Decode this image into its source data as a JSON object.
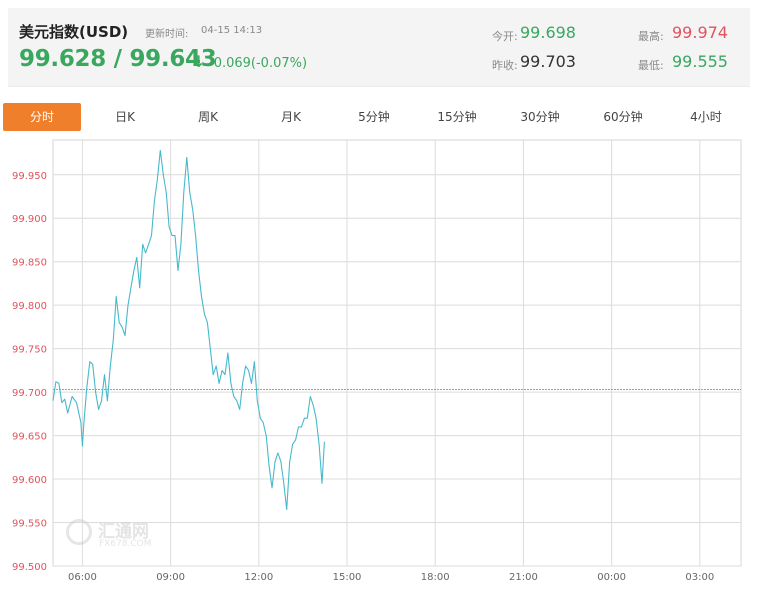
{
  "header": {
    "title": "美元指数(USD)",
    "update_label": "更新时间:",
    "update_time": "04-15 14:13",
    "price": "99.628 / 99.643",
    "change": "-0.069(-0.07%)",
    "open_label": "今开:",
    "open_value": "99.698",
    "prev_close_label": "昨收:",
    "prev_close_value": "99.703",
    "high_label": "最高:",
    "high_value": "99.974",
    "low_label": "最低:",
    "low_value": "99.555"
  },
  "tabs": [
    "分时",
    "日K",
    "周K",
    "月K",
    "5分钟",
    "15分钟",
    "30分钟",
    "60分钟",
    "4小时"
  ],
  "active_tab": "分时",
  "watermark": {
    "text": "汇通网",
    "sub": "FX678.COM"
  },
  "colors": {
    "up": "#e0535e",
    "down": "#3aa75f",
    "line": "#47b9cc",
    "reference": "#e38a55",
    "tab_active": "#f07f2c"
  },
  "chart_data": {
    "type": "line",
    "title": "",
    "xlabel": "",
    "ylabel": "",
    "x_ticks": [
      "06:00",
      "09:00",
      "12:00",
      "15:00",
      "18:00",
      "21:00",
      "00:00",
      "03:00"
    ],
    "y_ticks": [
      "99.500",
      "99.550",
      "99.600",
      "99.650",
      "99.700",
      "99.750",
      "99.800",
      "99.850",
      "99.900",
      "99.950"
    ],
    "ylim": [
      99.5,
      99.99
    ],
    "x_hours_range": [
      5.0,
      28.4
    ],
    "reference_value": 99.703,
    "grid": true,
    "series": [
      {
        "x": [
          5.0,
          5.1,
          5.2,
          5.3,
          5.4,
          5.5,
          5.65,
          5.8,
          5.95,
          6.0,
          6.05,
          6.15,
          6.25,
          6.35,
          6.45,
          6.55,
          6.65,
          6.75,
          6.85,
          6.95,
          7.05,
          7.15,
          7.25,
          7.35,
          7.45,
          7.55,
          7.65,
          7.75,
          7.85,
          7.95,
          8.05,
          8.15,
          8.25,
          8.35,
          8.45,
          8.55,
          8.65,
          8.75,
          8.85,
          8.95,
          9.05,
          9.15,
          9.25,
          9.35,
          9.45,
          9.55,
          9.65,
          9.75,
          9.85,
          9.95,
          10.05,
          10.15,
          10.25,
          10.35,
          10.45,
          10.55,
          10.65,
          10.75,
          10.85,
          10.95,
          11.05,
          11.15,
          11.25,
          11.35,
          11.45,
          11.55,
          11.65,
          11.75,
          11.85,
          11.95,
          12.05,
          12.15,
          12.25,
          12.35,
          12.45,
          12.55,
          12.65,
          12.75,
          12.85,
          12.95,
          13.05,
          13.15,
          13.25,
          13.35,
          13.45,
          13.55,
          13.65,
          13.75,
          13.85,
          13.95,
          14.05,
          14.15,
          14.23
        ],
        "y": [
          99.69,
          99.712,
          99.71,
          99.688,
          99.692,
          99.676,
          99.695,
          99.688,
          99.665,
          99.638,
          99.665,
          99.705,
          99.735,
          99.732,
          99.7,
          99.68,
          99.69,
          99.72,
          99.69,
          99.73,
          99.76,
          99.81,
          99.78,
          99.775,
          99.765,
          99.8,
          99.82,
          99.84,
          99.855,
          99.82,
          99.87,
          99.86,
          99.87,
          99.88,
          99.92,
          99.945,
          99.978,
          99.95,
          99.93,
          99.89,
          99.88,
          99.88,
          99.84,
          99.87,
          99.93,
          99.97,
          99.93,
          99.91,
          99.88,
          99.84,
          99.81,
          99.79,
          99.78,
          99.75,
          99.72,
          99.73,
          99.71,
          99.725,
          99.72,
          99.745,
          99.71,
          99.695,
          99.69,
          99.68,
          99.71,
          99.73,
          99.725,
          99.71,
          99.735,
          99.69,
          99.67,
          99.665,
          99.65,
          99.615,
          99.59,
          99.62,
          99.63,
          99.62,
          99.595,
          99.565,
          99.62,
          99.64,
          99.645,
          99.66,
          99.66,
          99.67,
          99.67,
          99.695,
          99.685,
          99.67,
          99.64,
          99.595,
          99.643
        ]
      }
    ]
  }
}
